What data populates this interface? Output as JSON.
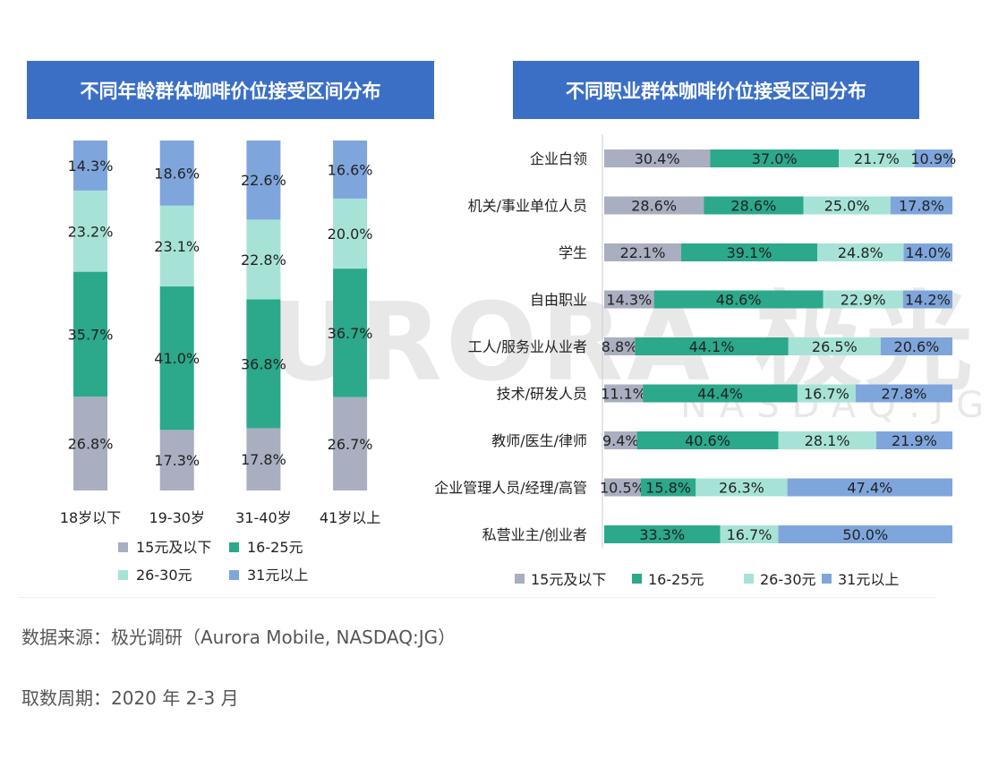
{
  "watermark": {
    "text": "URORA 极光",
    "sub": "NASDAQ:JG"
  },
  "colors": [
    "#a9aec0",
    "#2ca88a",
    "#a6e3d6",
    "#7ea6dc"
  ],
  "legend": [
    "15元及以下",
    "16-25元",
    "26-30元",
    "31元以上"
  ],
  "chart_data": [
    {
      "type": "bar",
      "stacked": true,
      "orientation": "vertical",
      "title": "不同年龄群体咖啡价位接受区间分布",
      "categories": [
        "18岁以下",
        "19-30岁",
        "31-40岁",
        "41岁以上"
      ],
      "series": [
        {
          "name": "15元及以下",
          "values": [
            26.8,
            17.3,
            17.8,
            26.7
          ]
        },
        {
          "name": "16-25元",
          "values": [
            35.7,
            41.0,
            36.8,
            36.7
          ]
        },
        {
          "name": "26-30元",
          "values": [
            23.2,
            23.1,
            22.8,
            20.0
          ]
        },
        {
          "name": "31元以上",
          "values": [
            14.3,
            18.6,
            22.6,
            16.6
          ]
        }
      ],
      "unit": "%",
      "legend_position": "bottom"
    },
    {
      "type": "bar",
      "stacked": true,
      "orientation": "horizontal",
      "title": "不同职业群体咖啡价位接受区间分布",
      "categories": [
        "企业白领",
        "机关/事业单位人员",
        "学生",
        "自由职业",
        "工人/服务业从业者",
        "技术/研发人员",
        "教师/医生/律师",
        "企业管理人员/经理/高管",
        "私营业主/创业者"
      ],
      "series": [
        {
          "name": "15元及以下",
          "values": [
            30.4,
            28.6,
            22.1,
            14.3,
            8.8,
            11.1,
            9.4,
            10.5,
            0
          ]
        },
        {
          "name": "16-25元",
          "values": [
            37.0,
            28.6,
            39.1,
            48.6,
            44.1,
            44.4,
            40.6,
            15.8,
            33.3
          ]
        },
        {
          "name": "26-30元",
          "values": [
            21.7,
            25.0,
            24.8,
            22.9,
            26.5,
            16.7,
            28.1,
            26.3,
            16.7
          ]
        },
        {
          "name": "31元以上",
          "values": [
            10.9,
            17.8,
            14.0,
            14.2,
            20.6,
            27.8,
            21.9,
            47.4,
            50.0
          ]
        }
      ],
      "unit": "%",
      "legend_position": "bottom"
    }
  ],
  "footer": {
    "source": "数据来源：极光调研（Aurora Mobile, NASDAQ:JG）",
    "period": "取数周期：2020 年 2-3 月"
  }
}
